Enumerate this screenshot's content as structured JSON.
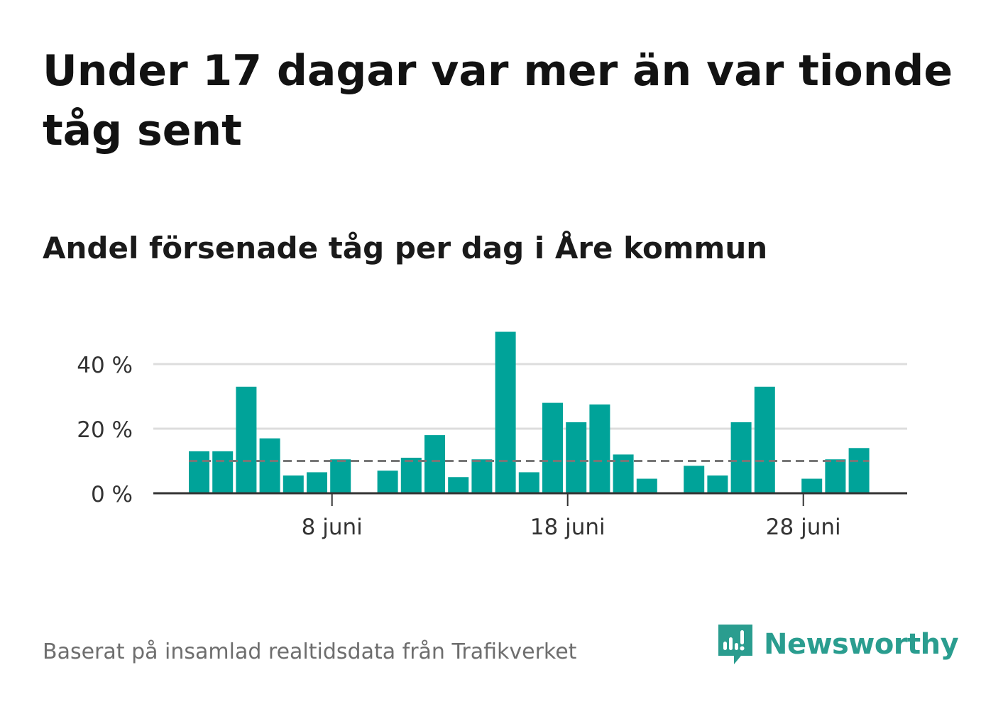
{
  "title": "Under 17 dagar var mer än var tionde tåg sent",
  "subtitle": "Andel försenade tåg per dag i Åre kommun",
  "source": "Baserat på insamlad realtidsdata från Trafikverket",
  "brand": {
    "name": "Newsworthy",
    "icon": "newsworthy-logo-icon"
  },
  "colors": {
    "bar": "#00a399",
    "reference_line": "#777777",
    "grid": "#dddddd",
    "axis": "#333333",
    "brand": "#2a9d8f"
  },
  "chart_data": {
    "type": "bar",
    "x_unit": "day of June",
    "x": [
      2,
      3,
      4,
      5,
      6,
      7,
      8,
      9,
      10,
      11,
      12,
      13,
      14,
      15,
      16,
      17,
      18,
      19,
      20,
      21,
      22,
      23,
      24,
      25,
      26,
      27,
      28,
      29,
      30
    ],
    "values": [
      13,
      13,
      33,
      17,
      5.5,
      6.5,
      10.5,
      0,
      7,
      11,
      18,
      5,
      10.5,
      50,
      6.5,
      28,
      22,
      27.5,
      12,
      4.5,
      0,
      8.5,
      5.5,
      22,
      33,
      0,
      4.5,
      10.5,
      14
    ],
    "reference_line": 10,
    "ylim": [
      0,
      52
    ],
    "y_ticks": [
      {
        "value": 0,
        "label": "0 %"
      },
      {
        "value": 20,
        "label": "20 %"
      },
      {
        "value": 40,
        "label": "40 %"
      }
    ],
    "x_ticks": [
      {
        "value": 8,
        "label": "8 juni"
      },
      {
        "value": 18,
        "label": "18 juni"
      },
      {
        "value": 28,
        "label": "28 juni"
      }
    ],
    "xlim": [
      -0.5,
      31.5
    ],
    "grid": true,
    "legend": "none"
  }
}
